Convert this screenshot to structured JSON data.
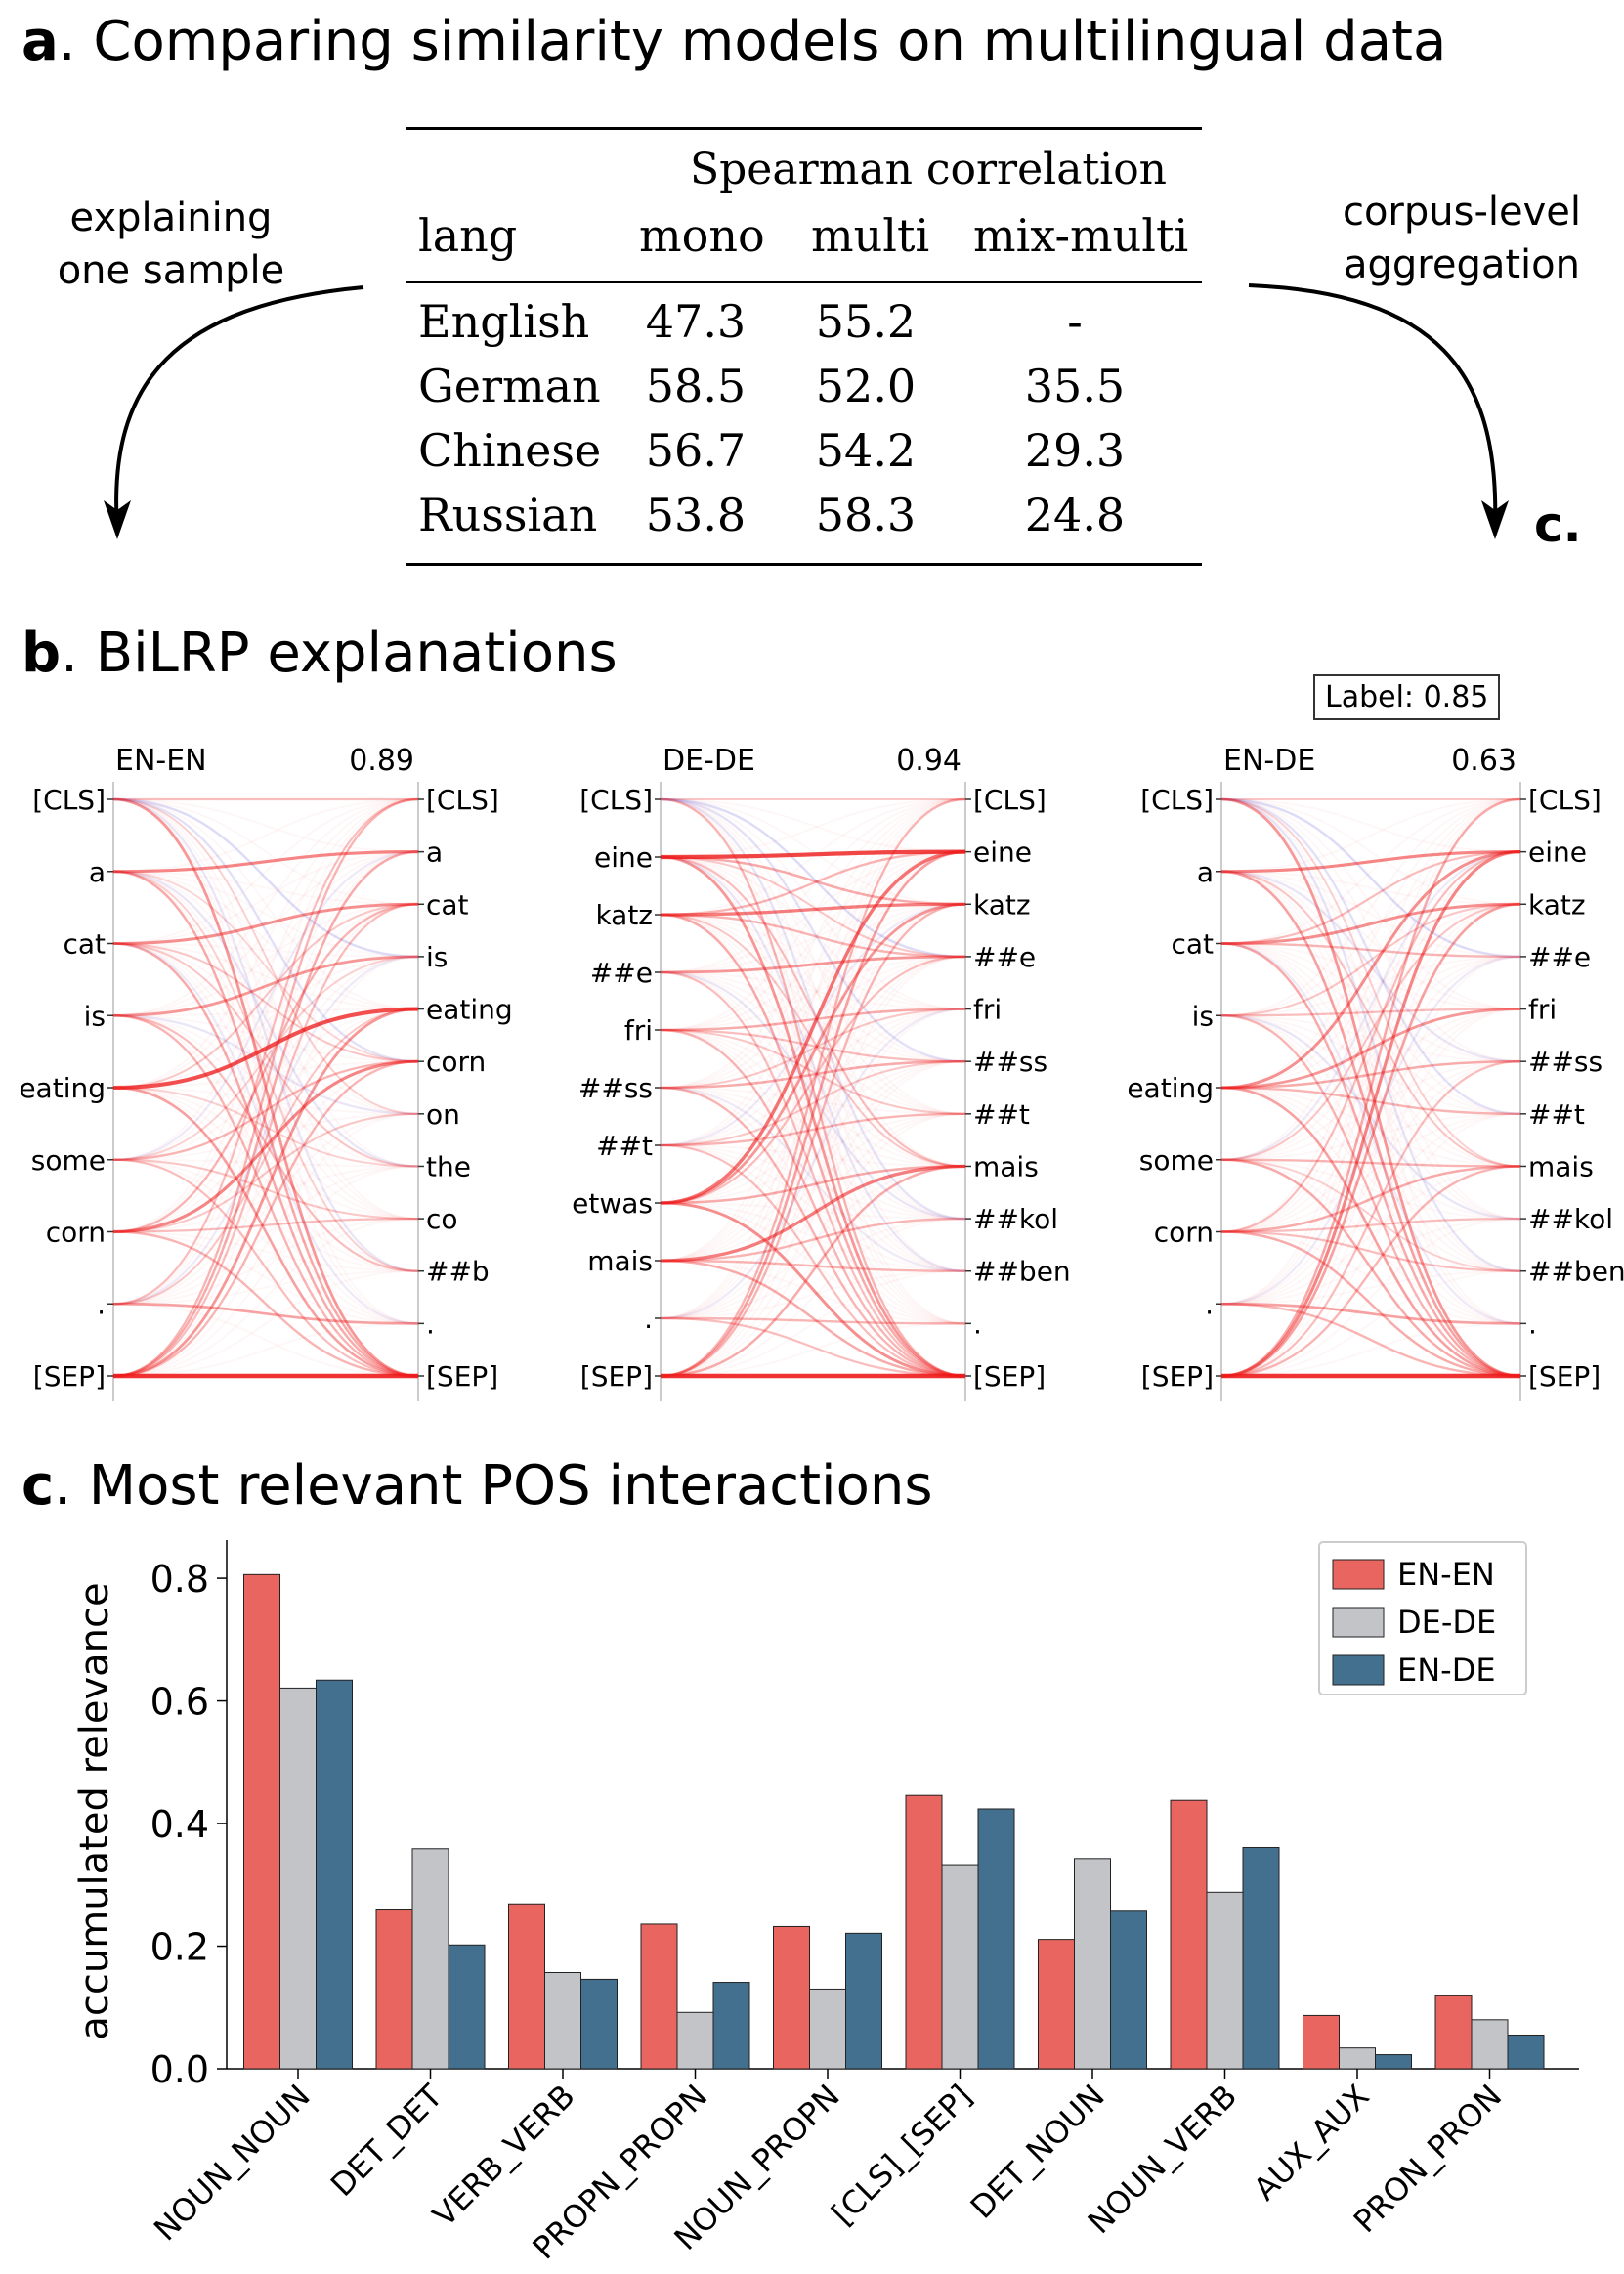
{
  "panel_a": {
    "letter": "a",
    "title": ". Comparing similarity models on multilingual data",
    "left_note": [
      "explaining",
      "one sample"
    ],
    "right_note": [
      "corpus-level",
      "aggregation"
    ],
    "right_arrow_label": "c.",
    "table": {
      "supheader": "Spearman correlation",
      "headers": [
        "lang",
        "mono",
        "multi",
        "mix-multi"
      ],
      "rows": [
        [
          "English",
          "47.3",
          "55.2",
          "-"
        ],
        [
          "German",
          "58.5",
          "52.0",
          "35.5"
        ],
        [
          "Chinese",
          "56.7",
          "54.2",
          "29.3"
        ],
        [
          "Russian",
          "53.8",
          "58.3",
          "24.8"
        ]
      ]
    }
  },
  "panel_b": {
    "letter": "b",
    "title": ". BiLRP explanations",
    "label_box": "Label: 0.85",
    "plots": [
      {
        "pair": "EN-EN",
        "score": "0.89",
        "left": [
          "[CLS]",
          "a",
          "cat",
          "is",
          "eating",
          "some",
          "corn",
          ".",
          "[SEP]"
        ],
        "right": [
          "[CLS]",
          "a",
          "cat",
          "is",
          "eating",
          "corn",
          "on",
          "the",
          "co",
          "##b",
          ".",
          "[SEP]"
        ],
        "links": [
          [
            8,
            11,
            1.0
          ],
          [
            4,
            4,
            0.85
          ],
          [
            1,
            1,
            0.55
          ],
          [
            2,
            2,
            0.5
          ],
          [
            3,
            3,
            0.45
          ],
          [
            6,
            5,
            0.55
          ],
          [
            5,
            5,
            0.3
          ],
          [
            0,
            0,
            0.25
          ],
          [
            7,
            10,
            0.4
          ],
          [
            1,
            11,
            0.35
          ],
          [
            0,
            11,
            0.45
          ],
          [
            8,
            0,
            0.3
          ],
          [
            8,
            1,
            0.35
          ],
          [
            8,
            4,
            0.45
          ],
          [
            4,
            11,
            0.4
          ],
          [
            2,
            11,
            0.35
          ],
          [
            6,
            2,
            0.3
          ],
          [
            7,
            0,
            0.25
          ],
          [
            3,
            9,
            0.25
          ],
          [
            2,
            7,
            0.2
          ],
          [
            5,
            8,
            0.2
          ],
          [
            6,
            8,
            0.25
          ],
          [
            1,
            9,
            0.15
          ],
          [
            4,
            2,
            0.2
          ],
          [
            3,
            11,
            0.3
          ],
          [
            6,
            11,
            0.3
          ],
          [
            5,
            11,
            0.25
          ],
          [
            8,
            5,
            0.3
          ],
          [
            8,
            2,
            0.25
          ],
          [
            7,
            4,
            0.2
          ],
          [
            0,
            6,
            0.15
          ],
          [
            2,
            5,
            0.2
          ],
          [
            4,
            7,
            0.15
          ],
          [
            5,
            3,
            0.15
          ],
          [
            1,
            5,
            0.12
          ],
          [
            6,
            6,
            0.2
          ]
        ],
        "neg_links": [
          [
            0,
            3,
            0.25
          ],
          [
            0,
            5,
            0.2
          ],
          [
            0,
            9,
            0.15
          ],
          [
            1,
            7,
            0.15
          ],
          [
            3,
            6,
            0.15
          ],
          [
            5,
            1,
            0.12
          ],
          [
            2,
            10,
            0.12
          ],
          [
            7,
            3,
            0.12
          ]
        ]
      },
      {
        "pair": "DE-DE",
        "score": "0.94",
        "left": [
          "[CLS]",
          "eine",
          "katz",
          "##e",
          "fri",
          "##ss",
          "##t",
          "etwas",
          "mais",
          ".",
          "[SEP]"
        ],
        "right": [
          "[CLS]",
          "eine",
          "katz",
          "##e",
          "fri",
          "##ss",
          "##t",
          "mais",
          "##kol",
          "##ben",
          ".",
          "[SEP]"
        ],
        "links": [
          [
            10,
            11,
            1.0
          ],
          [
            1,
            1,
            0.9
          ],
          [
            2,
            2,
            0.6
          ],
          [
            3,
            3,
            0.45
          ],
          [
            4,
            4,
            0.35
          ],
          [
            5,
            5,
            0.35
          ],
          [
            6,
            6,
            0.3
          ],
          [
            8,
            7,
            0.6
          ],
          [
            7,
            1,
            0.65
          ],
          [
            7,
            11,
            0.5
          ],
          [
            1,
            11,
            0.45
          ],
          [
            2,
            11,
            0.35
          ],
          [
            10,
            0,
            0.3
          ],
          [
            10,
            1,
            0.4
          ],
          [
            10,
            7,
            0.35
          ],
          [
            8,
            11,
            0.35
          ],
          [
            7,
            2,
            0.45
          ],
          [
            1,
            2,
            0.35
          ],
          [
            2,
            1,
            0.3
          ],
          [
            4,
            11,
            0.3
          ],
          [
            5,
            11,
            0.3
          ],
          [
            6,
            11,
            0.25
          ],
          [
            3,
            11,
            0.25
          ],
          [
            0,
            11,
            0.3
          ],
          [
            8,
            8,
            0.3
          ],
          [
            8,
            9,
            0.3
          ],
          [
            7,
            7,
            0.35
          ],
          [
            1,
            7,
            0.25
          ],
          [
            2,
            3,
            0.3
          ],
          [
            4,
            5,
            0.25
          ],
          [
            5,
            4,
            0.2
          ],
          [
            9,
            10,
            0.3
          ],
          [
            10,
            2,
            0.3
          ],
          [
            6,
            5,
            0.2
          ],
          [
            4,
            6,
            0.2
          ],
          [
            7,
            3,
            0.25
          ],
          [
            1,
            3,
            0.2
          ],
          [
            2,
            7,
            0.2
          ],
          [
            0,
            0,
            0.2
          ],
          [
            9,
            11,
            0.25
          ]
        ],
        "neg_links": [
          [
            0,
            3,
            0.25
          ],
          [
            0,
            5,
            0.2
          ],
          [
            0,
            8,
            0.18
          ],
          [
            1,
            9,
            0.15
          ],
          [
            3,
            8,
            0.15
          ],
          [
            5,
            9,
            0.12
          ],
          [
            6,
            2,
            0.12
          ],
          [
            9,
            4,
            0.12
          ]
        ]
      },
      {
        "pair": "EN-DE",
        "score": "0.63",
        "left": [
          "[CLS]",
          "a",
          "cat",
          "is",
          "eating",
          "some",
          "corn",
          ".",
          "[SEP]"
        ],
        "right": [
          "[CLS]",
          "eine",
          "katz",
          "##e",
          "fri",
          "##ss",
          "##t",
          "mais",
          "##kol",
          "##ben",
          ".",
          "[SEP]"
        ],
        "links": [
          [
            8,
            11,
            1.0
          ],
          [
            1,
            1,
            0.55
          ],
          [
            2,
            2,
            0.5
          ],
          [
            4,
            4,
            0.45
          ],
          [
            4,
            1,
            0.5
          ],
          [
            6,
            7,
            0.35
          ],
          [
            5,
            7,
            0.3
          ],
          [
            7,
            10,
            0.4
          ],
          [
            0,
            0,
            0.2
          ],
          [
            1,
            11,
            0.4
          ],
          [
            2,
            11,
            0.35
          ],
          [
            3,
            11,
            0.3
          ],
          [
            4,
            11,
            0.4
          ],
          [
            5,
            11,
            0.35
          ],
          [
            6,
            11,
            0.35
          ],
          [
            0,
            11,
            0.45
          ],
          [
            8,
            0,
            0.35
          ],
          [
            8,
            1,
            0.55
          ],
          [
            8,
            2,
            0.4
          ],
          [
            8,
            7,
            0.3
          ],
          [
            2,
            3,
            0.3
          ],
          [
            4,
            5,
            0.35
          ],
          [
            4,
            6,
            0.3
          ],
          [
            3,
            4,
            0.25
          ],
          [
            6,
            8,
            0.25
          ],
          [
            6,
            9,
            0.25
          ],
          [
            5,
            2,
            0.2
          ],
          [
            1,
            7,
            0.2
          ],
          [
            7,
            11,
            0.3
          ],
          [
            6,
            1,
            0.25
          ],
          [
            2,
            1,
            0.25
          ],
          [
            8,
            5,
            0.25
          ],
          [
            3,
            2,
            0.2
          ],
          [
            5,
            9,
            0.15
          ],
          [
            0,
            7,
            0.15
          ]
        ],
        "neg_links": [
          [
            0,
            3,
            0.25
          ],
          [
            0,
            6,
            0.2
          ],
          [
            0,
            9,
            0.18
          ],
          [
            1,
            5,
            0.15
          ],
          [
            3,
            8,
            0.15
          ],
          [
            5,
            1,
            0.12
          ],
          [
            2,
            10,
            0.12
          ],
          [
            7,
            3,
            0.12
          ]
        ]
      }
    ]
  },
  "panel_c": {
    "letter": "c",
    "title": ". Most relevant POS interactions",
    "colors": {
      "EN-EN": "#e8665f",
      "DE-DE": "#c3c4c8",
      "EN-DE": "#44708f"
    }
  },
  "chart_data": {
    "type": "bar",
    "categories": [
      "NOUN_NOUN",
      "DET_DET",
      "VERB_VERB",
      "PROPN_PROPN",
      "NOUN_PROPN",
      "[CLS]_[SEP]",
      "DET_NOUN",
      "NOUN_VERB",
      "AUX_AUX",
      "PRON_PRON"
    ],
    "series": [
      {
        "name": "EN-EN",
        "color": "#e8665f",
        "values": [
          0.806,
          0.259,
          0.269,
          0.236,
          0.232,
          0.446,
          0.211,
          0.438,
          0.087,
          0.119
        ]
      },
      {
        "name": "DE-DE",
        "color": "#c3c4c8",
        "values": [
          0.621,
          0.359,
          0.157,
          0.092,
          0.13,
          0.333,
          0.343,
          0.288,
          0.034,
          0.08
        ]
      },
      {
        "name": "EN-DE",
        "color": "#44708f",
        "values": [
          0.634,
          0.202,
          0.146,
          0.141,
          0.221,
          0.424,
          0.257,
          0.361,
          0.023,
          0.055
        ]
      }
    ],
    "title": "",
    "xlabel": "",
    "ylabel": "accumulated relevance",
    "ylim": [
      0,
      0.84
    ],
    "yticks": [
      "0.0",
      "0.2",
      "0.4",
      "0.6",
      "0.8"
    ],
    "ytick_values": [
      0,
      0.2,
      0.4,
      0.6,
      0.8
    ],
    "legend_position": "top-right",
    "grid": false
  }
}
